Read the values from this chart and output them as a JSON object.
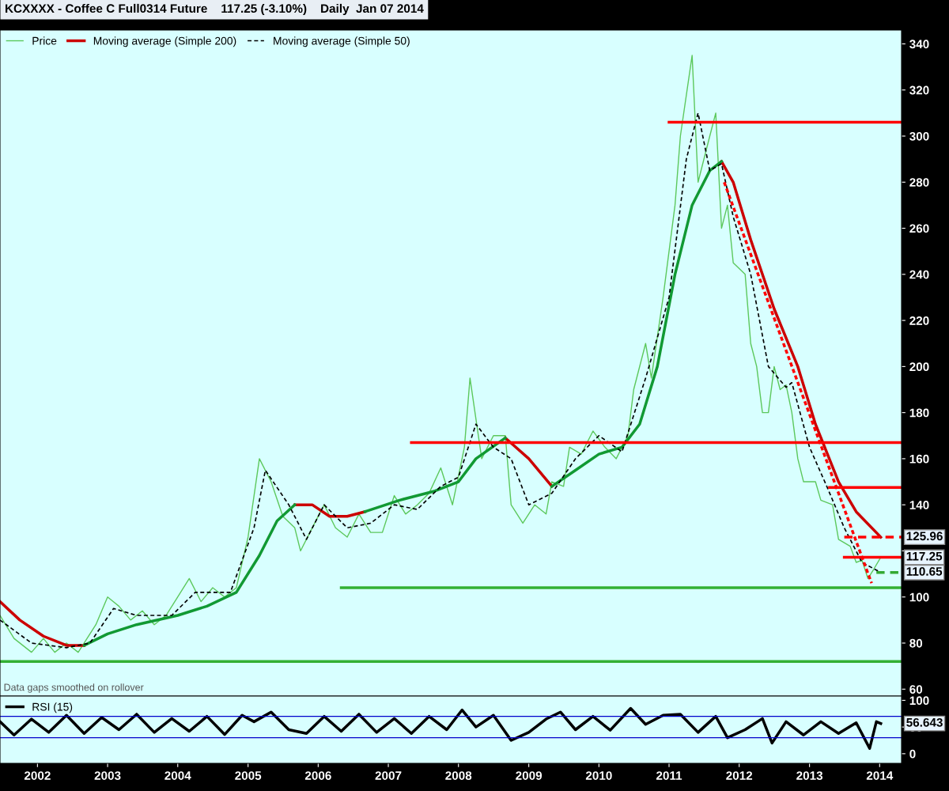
{
  "chart_data": [
    {
      "type": "line",
      "title": "KCXXXX - Coffee C Full0314 Future    117.25 (-3.10%)    Daily  Jan 07 2014",
      "xlim": [
        "2001-06-20",
        "2014-04-25"
      ],
      "ylim": [
        57,
        346
      ],
      "yticks": [
        60,
        80,
        100,
        {
          "value": 120,
          "label": null
        },
        140,
        160,
        180,
        200,
        220,
        240,
        260,
        280,
        300,
        320,
        340
      ],
      "tick_labels": "y",
      "grid": false,
      "legend": "top left",
      "annotations": [
        "Data gaps smoothed on rollover",
        {
          "text": "125.96",
          "x": "2014-01-07",
          "y": 125.96
        },
        {
          "text": "117.25",
          "x": "2014-01-07",
          "y": 117.25
        },
        {
          "text": "110.65",
          "x": "2014-01-07",
          "y": 110.65
        }
      ],
      "series": [
        {
          "name": "Price",
          "color": "#5cc85c",
          "line_style": "solid",
          "x": [
            "2001-06-20",
            "2001-09-01",
            "2001-12-01",
            "2002-02-01",
            "2002-04-01",
            "2002-06-01",
            "2002-08-01",
            "2002-09-01",
            "2002-11-01",
            "2003-01-01",
            "2003-03-01",
            "2003-05-01",
            "2003-07-01",
            "2003-09-01",
            "2003-11-01",
            "2004-01-01",
            "2004-03-01",
            "2004-05-01",
            "2004-07-01",
            "2004-09-01",
            "2004-11-01",
            "2005-01-01",
            "2005-03-01",
            "2005-05-01",
            "2005-07-01",
            "2005-09-01",
            "2005-10-01",
            "2005-12-01",
            "2006-02-01",
            "2006-04-01",
            "2006-06-01",
            "2006-08-01",
            "2006-10-01",
            "2006-12-01",
            "2007-02-01",
            "2007-04-01",
            "2007-06-01",
            "2007-08-01",
            "2007-10-01",
            "2007-12-01",
            "2008-02-01",
            "2008-03-01",
            "2008-05-01",
            "2008-07-01",
            "2008-09-01",
            "2008-10-01",
            "2008-12-01",
            "2009-02-01",
            "2009-04-01",
            "2009-05-01",
            "2009-07-01",
            "2009-08-01",
            "2009-10-01",
            "2009-12-01",
            "2010-02-01",
            "2010-04-01",
            "2010-06-01",
            "2010-07-01",
            "2010-09-01",
            "2010-10-01",
            "2010-12-01",
            "2011-02-01",
            "2011-03-01",
            "2011-05-01",
            "2011-06-01",
            "2011-08-01",
            "2011-09-01",
            "2011-10-01",
            "2011-11-01",
            "2011-12-01",
            "2012-02-01",
            "2012-03-01",
            "2012-04-01",
            "2012-05-01",
            "2012-06-01",
            "2012-07-01",
            "2012-08-01",
            "2012-09-01",
            "2012-10-01",
            "2012-11-01",
            "2012-12-01",
            "2013-02-01",
            "2013-03-01",
            "2013-05-01",
            "2013-06-01",
            "2013-08-01",
            "2013-09-01",
            "2013-10-01",
            "2013-11-01",
            "2013-12-01",
            "2014-01-07"
          ],
          "values": [
            92,
            82,
            76,
            82,
            76,
            80,
            76,
            80,
            88,
            100,
            96,
            90,
            94,
            88,
            92,
            100,
            108,
            98,
            104,
            100,
            104,
            126,
            160,
            150,
            135,
            130,
            120,
            130,
            140,
            130,
            126,
            136,
            128,
            128,
            144,
            136,
            140,
            145,
            156,
            140,
            165,
            195,
            160,
            170,
            170,
            140,
            132,
            140,
            136,
            150,
            148,
            165,
            162,
            172,
            165,
            160,
            170,
            190,
            210,
            195,
            230,
            270,
            300,
            335,
            280,
            300,
            310,
            260,
            270,
            245,
            240,
            210,
            200,
            180,
            180,
            200,
            190,
            192,
            180,
            160,
            150,
            150,
            142,
            140,
            125,
            122,
            115,
            116,
            108,
            112,
            117.25
          ]
        },
        {
          "name": "Moving average (Simple 200)",
          "color": "#cc0000",
          "line_style": "solid",
          "x": [
            "2011-10-01",
            "2011-12-01",
            "2012-03-01",
            "2012-07-01",
            "2012-11-01",
            "2013-02-01",
            "2013-06-01",
            "2013-09-01",
            "2014-01-07"
          ],
          "values": [
            289,
            280,
            255,
            225,
            200,
            175,
            150,
            137,
            125.96
          ]
        },
        {
          "color": "#cc0000",
          "line_style": "solid",
          "x": [
            "2001-06-20",
            "2001-10-01",
            "2002-02-01",
            "2002-06-01",
            "2002-09-01"
          ],
          "values": [
            98,
            90,
            83,
            79,
            79
          ]
        },
        {
          "color": "#cc0000",
          "line_style": "solid",
          "x": [
            "2005-09-01",
            "2005-12-01",
            "2006-03-01",
            "2006-06-01",
            "2006-09-01"
          ],
          "values": [
            140,
            140,
            135,
            135,
            137
          ]
        },
        {
          "color": "#cc0000",
          "line_style": "solid",
          "x": [
            "2008-09-01",
            "2009-01-01",
            "2009-05-01"
          ],
          "values": [
            169,
            160,
            148
          ]
        },
        {
          "color": "#119933",
          "line_style": "solid",
          "x": [
            "2002-09-01",
            "2003-01-01",
            "2003-06-01",
            "2004-01-01",
            "2004-06-01",
            "2004-11-01",
            "2005-03-01",
            "2005-06-01",
            "2005-09-01"
          ],
          "values": [
            79,
            84,
            88,
            92,
            96,
            102,
            118,
            133,
            140
          ]
        },
        {
          "color": "#119933",
          "line_style": "solid",
          "x": [
            "2006-09-01",
            "2007-03-01",
            "2007-09-01",
            "2008-01-01",
            "2008-04-01",
            "2008-09-01"
          ],
          "values": [
            137,
            142,
            146,
            150,
            160,
            169
          ]
        },
        {
          "color": "#119933",
          "line_style": "solid",
          "x": [
            "2009-05-01",
            "2009-09-01",
            "2010-01-01",
            "2010-05-01",
            "2010-08-01",
            "2010-11-01",
            "2011-02-01",
            "2011-05-01",
            "2011-08-01",
            "2011-10-01"
          ],
          "values": [
            148,
            155,
            162,
            165,
            175,
            200,
            240,
            270,
            285,
            289
          ]
        },
        {
          "name": "Moving average (Simple 50)",
          "color": "#000000",
          "line_style": "dashed",
          "x": [
            "2001-06-20",
            "2001-12-01",
            "2002-06-01",
            "2002-10-01",
            "2003-02-01",
            "2003-06-01",
            "2003-12-01",
            "2004-04-01",
            "2004-10-01",
            "2005-02-01",
            "2005-04-01",
            "2005-08-01",
            "2005-11-01",
            "2006-02-01",
            "2006-06-01",
            "2006-10-01",
            "2007-02-01",
            "2007-06-01",
            "2007-10-01",
            "2008-01-01",
            "2008-04-01",
            "2008-07-01",
            "2008-10-01",
            "2009-01-01",
            "2009-05-01",
            "2009-09-01",
            "2010-01-01",
            "2010-05-01",
            "2010-09-01",
            "2011-01-01",
            "2011-04-01",
            "2011-06-01",
            "2011-08-01",
            "2011-10-01",
            "2011-12-01",
            "2012-03-01",
            "2012-06-01",
            "2012-09-01",
            "2012-10-01",
            "2013-01-01",
            "2013-04-01",
            "2013-07-01",
            "2013-10-01",
            "2014-01-07"
          ],
          "values": [
            90,
            80,
            78,
            80,
            95,
            92,
            92,
            102,
            102,
            130,
            155,
            140,
            125,
            140,
            130,
            132,
            140,
            138,
            148,
            152,
            175,
            165,
            160,
            140,
            145,
            160,
            170,
            163,
            195,
            230,
            290,
            310,
            285,
            288,
            265,
            240,
            200,
            191,
            193,
            165,
            148,
            130,
            115,
            110.65
          ]
        },
        {
          "color": "#ff0000",
          "line_style": "solid",
          "x": [
            "2011-01-01",
            "2014-04-25"
          ],
          "values": [
            306,
            306
          ]
        },
        {
          "color": "#ff0000",
          "line_style": "solid",
          "x": [
            "2007-05-01",
            "2014-04-25"
          ],
          "values": [
            167,
            167
          ]
        },
        {
          "color": "#ff0000",
          "line_style": "solid",
          "x": [
            "2013-04-15",
            "2014-04-25"
          ],
          "values": [
            147.5,
            147.5
          ]
        },
        {
          "color": "#ff0000",
          "line_style": "solid",
          "x": [
            "2013-07-01",
            "2014-04-25"
          ],
          "values": [
            117.25,
            117.25
          ]
        },
        {
          "color": "#ff0000",
          "line_style": "dashed",
          "x": [
            "2013-07-01",
            "2014-04-25"
          ],
          "values": [
            125.96,
            125.96
          ]
        },
        {
          "color": "#33aa33",
          "line_style": "dashed",
          "x": [
            "2013-12-15",
            "2014-04-25"
          ],
          "values": [
            110.65,
            110.65
          ]
        },
        {
          "color": "#33b033",
          "line_style": "solid",
          "x": [
            "2006-05-01",
            "2014-04-25"
          ],
          "values": [
            104,
            104
          ]
        },
        {
          "color": "#33b033",
          "line_style": "solid",
          "x": [
            "2001-06-20",
            "2014-04-25"
          ],
          "values": [
            72,
            72
          ]
        },
        {
          "color": "#ff0000",
          "line_style": "dotted",
          "x": [
            "2011-10-15",
            "2013-11-20"
          ],
          "values": [
            280,
            106
          ]
        }
      ]
    },
    {
      "type": "line",
      "xlim": [
        "2001-06-20",
        "2014-04-25"
      ],
      "ylim": [
        -18,
        108
      ],
      "yticks": [
        0,
        50,
        100
      ],
      "grid": false,
      "legend": "top left",
      "xticks": [
        {
          "value": "2002-01-01",
          "label": "2002"
        },
        {
          "value": "2003-01-01",
          "label": "2003"
        },
        {
          "value": "2004-01-01",
          "label": "2004"
        },
        {
          "value": "2005-01-01",
          "label": "2005"
        },
        {
          "value": "2006-01-01",
          "label": "2006"
        },
        {
          "value": "2007-01-01",
          "label": "2007"
        },
        {
          "value": "2008-01-01",
          "label": "2008"
        },
        {
          "value": "2009-01-01",
          "label": "2009"
        },
        {
          "value": "2010-01-01",
          "label": "2010"
        },
        {
          "value": "2011-01-01",
          "label": "2011"
        },
        {
          "value": "2012-01-01",
          "label": "2012"
        },
        {
          "value": "2013-01-01",
          "label": "2013"
        },
        {
          "value": "2014-01-01",
          "label": "2014"
        }
      ],
      "annotations": [
        {
          "text": "56.643",
          "x": "2014-01-07",
          "y": 56.643
        }
      ],
      "ref_lines": [
        {
          "axis": "y",
          "value": 70,
          "color": "#0000cc"
        },
        {
          "axis": "y",
          "value": 30,
          "color": "#0000cc"
        }
      ],
      "series": [
        {
          "name": "RSI (15)",
          "color": "#000000",
          "line_style": "solid",
          "x": [
            "2001-06-20",
            "2001-09-01",
            "2001-12-01",
            "2002-03-01",
            "2002-06-01",
            "2002-09-01",
            "2002-12-01",
            "2003-03-01",
            "2003-06-01",
            "2003-09-01",
            "2003-12-01",
            "2004-03-01",
            "2004-06-01",
            "2004-09-01",
            "2004-12-01",
            "2005-02-01",
            "2005-05-01",
            "2005-08-01",
            "2005-11-01",
            "2006-02-01",
            "2006-05-01",
            "2006-08-01",
            "2006-11-01",
            "2007-02-01",
            "2007-05-01",
            "2007-08-01",
            "2007-11-01",
            "2008-01-20",
            "2008-04-01",
            "2008-07-01",
            "2008-10-01",
            "2009-01-01",
            "2009-04-01",
            "2009-06-15",
            "2009-09-01",
            "2009-12-01",
            "2010-03-01",
            "2010-06-15",
            "2010-09-01",
            "2010-12-01",
            "2011-03-01",
            "2011-06-01",
            "2011-09-01",
            "2011-11-01",
            "2012-02-01",
            "2012-05-01",
            "2012-06-20",
            "2012-09-01",
            "2012-12-01",
            "2013-03-01",
            "2013-06-01",
            "2013-09-01",
            "2013-11-10",
            "2013-12-15",
            "2014-01-07"
          ],
          "values": [
            60,
            35,
            65,
            40,
            72,
            38,
            68,
            45,
            74,
            40,
            66,
            42,
            70,
            36,
            72,
            60,
            78,
            45,
            38,
            70,
            42,
            74,
            40,
            66,
            38,
            70,
            45,
            82,
            50,
            72,
            25,
            40,
            65,
            78,
            45,
            70,
            44,
            85,
            55,
            72,
            74,
            40,
            70,
            30,
            45,
            66,
            20,
            60,
            35,
            60,
            38,
            58,
            10,
            60,
            56.643
          ]
        }
      ]
    }
  ]
}
